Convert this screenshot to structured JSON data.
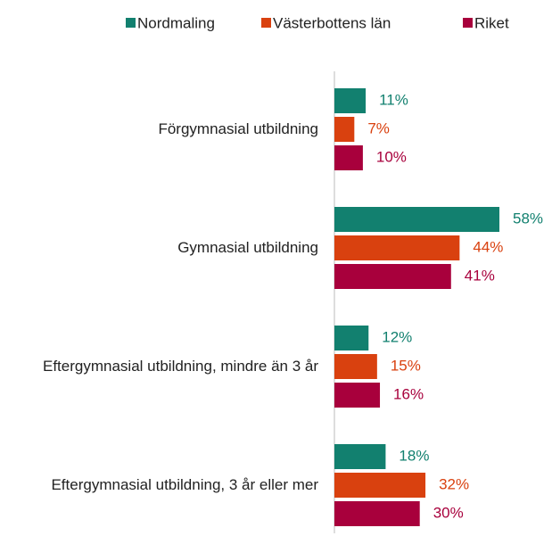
{
  "chart_data": {
    "type": "bar",
    "orientation": "horizontal",
    "categories": [
      "Förgymnasial utbildning",
      "Gymnasial utbildning",
      "Eftergymnasial utbildning, mindre än 3 år",
      "Eftergymnasial utbildning, 3 år eller mer"
    ],
    "series": [
      {
        "name": "Nordmaling",
        "color": "#12806f",
        "values": [
          11,
          58,
          12,
          18
        ],
        "value_labels": [
          "11%",
          "58%",
          "12%",
          "18%"
        ]
      },
      {
        "name": "Västerbottens län",
        "color": "#d9410f",
        "values": [
          7,
          44,
          15,
          32
        ],
        "value_labels": [
          "7%",
          "44%",
          "15%",
          "32%"
        ]
      },
      {
        "name": "Riket",
        "color": "#a8003c",
        "values": [
          10,
          41,
          16,
          30
        ],
        "value_labels": [
          "10%",
          "41%",
          "16%",
          "30%"
        ]
      }
    ],
    "legend": "top"
  }
}
